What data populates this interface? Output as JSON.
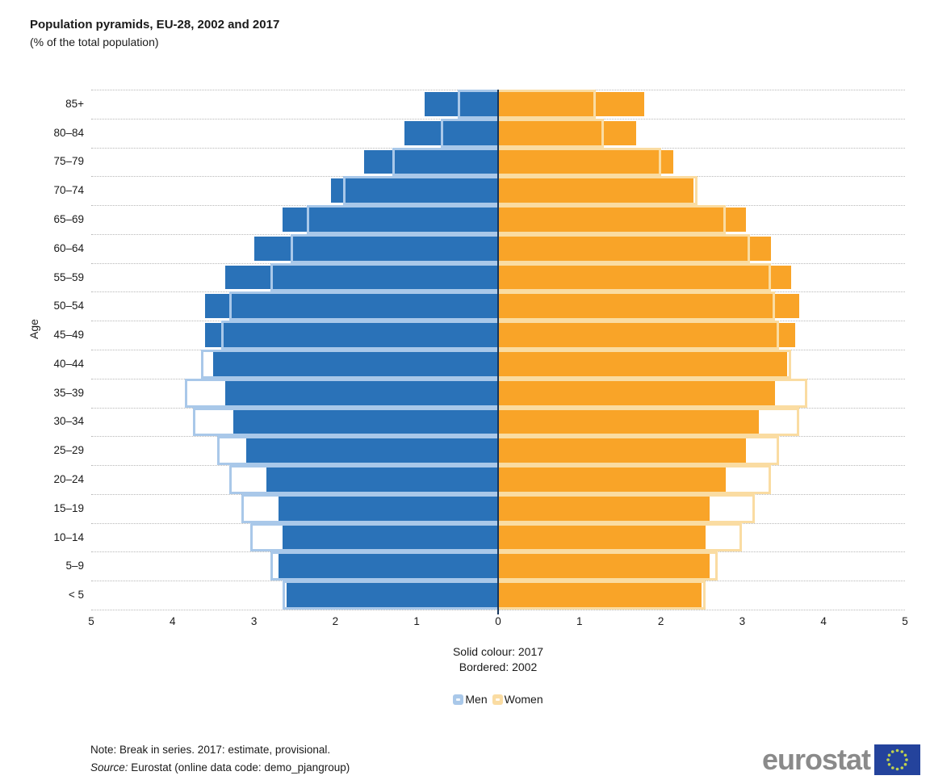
{
  "header": {
    "title": "Population pyramids, EU-28, 2002 and 2017",
    "subtitle": "(% of the total population)"
  },
  "chart_data": {
    "type": "bar",
    "subtype": "population-pyramid",
    "title": "Population pyramids, EU-28, 2002 and 2017",
    "subtitle": "(% of the total population)",
    "ylabel": "Age",
    "xlabel": "",
    "xlim": [
      -5,
      5
    ],
    "x_ticks": [
      "5",
      "4",
      "3",
      "2",
      "1",
      "0",
      "1",
      "2",
      "3",
      "4",
      "5"
    ],
    "grid": "horizontal-dotted",
    "legend_position": "bottom-center",
    "categories": [
      "85+",
      "80–84",
      "75–79",
      "70–74",
      "65–69",
      "60–64",
      "55–59",
      "50–54",
      "45–49",
      "40–44",
      "35–39",
      "30–34",
      "25–29",
      "20–24",
      "15–19",
      "10–14",
      "5–9",
      "< 5"
    ],
    "series": [
      {
        "name": "Men 2017 (solid)",
        "side": "left",
        "style": "solid",
        "values": [
          0.9,
          1.15,
          1.65,
          2.05,
          2.65,
          3.0,
          3.35,
          3.6,
          3.6,
          3.5,
          3.35,
          3.25,
          3.1,
          2.85,
          2.7,
          2.65,
          2.7,
          2.6
        ]
      },
      {
        "name": "Men 2002 (bordered)",
        "side": "left",
        "style": "bordered",
        "values": [
          0.5,
          0.7,
          1.3,
          1.9,
          2.35,
          2.55,
          2.8,
          3.3,
          3.4,
          3.65,
          3.85,
          3.75,
          3.45,
          3.3,
          3.15,
          3.05,
          2.8,
          2.65
        ]
      },
      {
        "name": "Women 2017 (solid)",
        "side": "right",
        "style": "solid",
        "values": [
          1.8,
          1.7,
          2.15,
          2.4,
          3.05,
          3.35,
          3.6,
          3.7,
          3.65,
          3.55,
          3.4,
          3.2,
          3.05,
          2.8,
          2.6,
          2.55,
          2.6,
          2.5
        ]
      },
      {
        "name": "Women 2002 (bordered)",
        "side": "right",
        "style": "bordered",
        "values": [
          1.2,
          1.3,
          2.0,
          2.45,
          2.8,
          3.1,
          3.35,
          3.4,
          3.45,
          3.6,
          3.8,
          3.7,
          3.45,
          3.35,
          3.15,
          3.0,
          2.7,
          2.55
        ]
      }
    ],
    "colors": {
      "men_solid": "#2A72B8",
      "men_border": "#A9C8E9",
      "women_solid": "#F9A428",
      "women_border": "#FADCA2",
      "divider": "#17365D",
      "gridline": "#B8B8B8"
    },
    "captions": {
      "solid": "Solid colour: 2017",
      "bordered": "Bordered: 2002"
    }
  },
  "legend": {
    "men_label": "Men",
    "women_label": "Women"
  },
  "footer": {
    "note": "Note: Break in series. 2017: estimate, provisional.",
    "source_label": "Source:",
    "source_text": " Eurostat (online data code: demo_pjangroup)"
  },
  "logo": {
    "text": "eurostat",
    "text_color": "#8A8A8A",
    "flag_blue": "#24439C",
    "star_color": "#BFD24E"
  }
}
